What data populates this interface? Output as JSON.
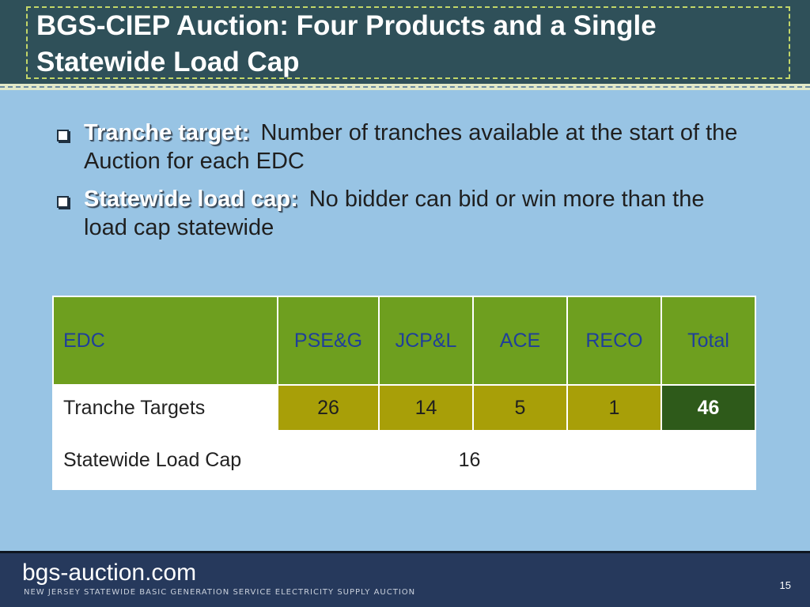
{
  "title": "BGS-CIEP Auction: Four Products and a Single Statewide Load Cap",
  "bullets": [
    {
      "term": "Tranche target:",
      "text": "Number of tranches available at the start of the Auction for each EDC"
    },
    {
      "term": "Statewide load cap:",
      "text": "No bidder can bid or win more than the load cap statewide"
    }
  ],
  "table": {
    "headers": [
      "EDC",
      "PSE&G",
      "JCP&L",
      "ACE",
      "RECO",
      "Total"
    ],
    "rows": [
      {
        "label": "Tranche Targets",
        "values": [
          "26",
          "14",
          "5",
          "1"
        ],
        "total": "46"
      },
      {
        "label": "Statewide Load Cap",
        "merged_value": "16",
        "total": ""
      }
    ]
  },
  "footer": {
    "brand": "bgs-auction.com",
    "tagline": "NEW JERSEY STATEWIDE BASIC GENERATION SERVICE ELECTRICITY SUPPLY AUCTION",
    "page_number": "15"
  },
  "colors": {
    "background": "#98c4e4",
    "title_bar": "#2f5059",
    "header_green": "#6e9f1f",
    "header_text": "#1f3f9a",
    "olive_cell": "#a89f08",
    "total_cell": "#2e5a1a",
    "footer": "#26395c"
  }
}
